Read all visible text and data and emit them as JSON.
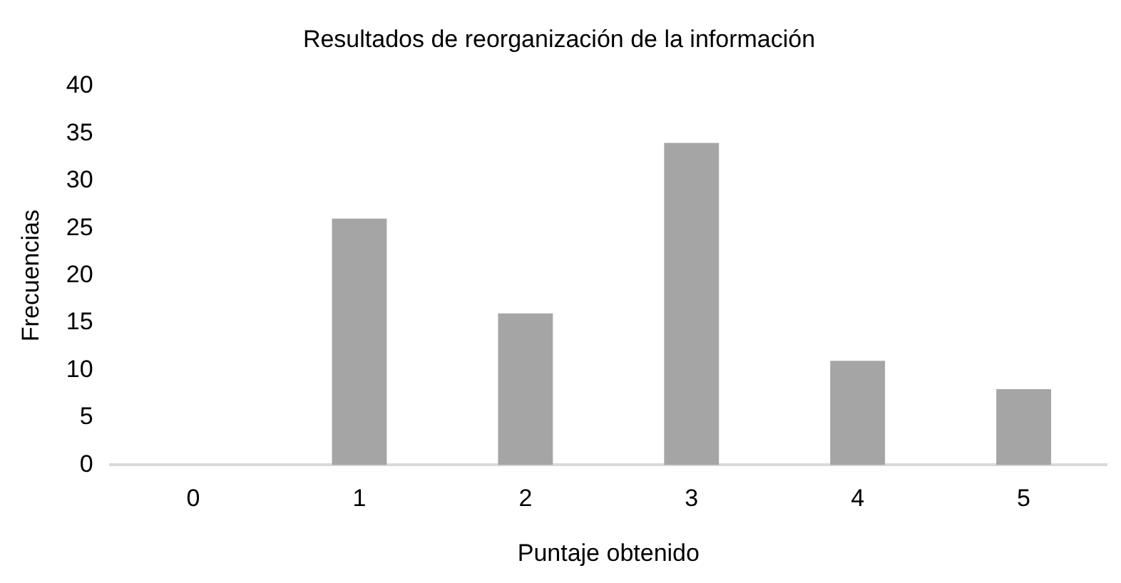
{
  "chart_data": {
    "type": "bar",
    "title": "Resultados de reorganización de la información",
    "xlabel": "Puntaje obtenido",
    "ylabel": "Frecuencias",
    "categories": [
      "0",
      "1",
      "2",
      "3",
      "4",
      "5"
    ],
    "values": [
      0,
      26,
      16,
      34,
      11,
      8
    ],
    "color": "#a5a5a5",
    "ylim": [
      0,
      40
    ],
    "yticks": [
      0,
      5,
      10,
      15,
      20,
      25,
      30,
      35,
      40
    ],
    "grid": false,
    "legend": false
  }
}
